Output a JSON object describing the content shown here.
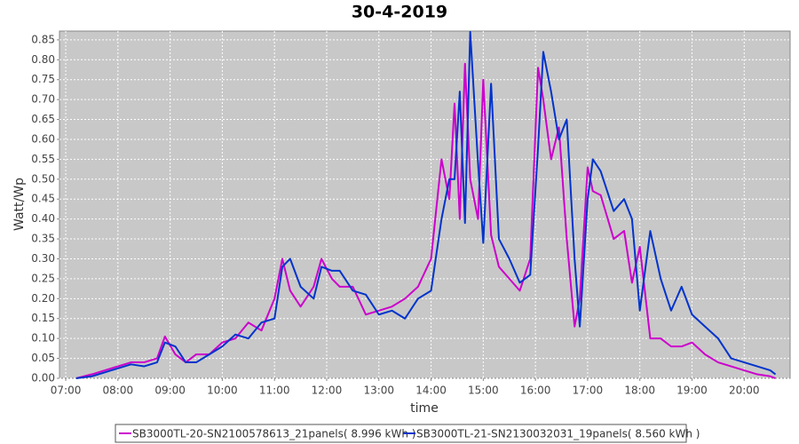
{
  "chart_data": {
    "type": "line",
    "title": "30-4-2019",
    "x_label": "time",
    "y_label": "Watt/Wp",
    "x": [
      7.2,
      7.5,
      7.75,
      8,
      8.25,
      8.5,
      8.75,
      8.9,
      9.1,
      9.3,
      9.5,
      9.75,
      10,
      10.25,
      10.5,
      10.75,
      11,
      11.15,
      11.3,
      11.5,
      11.75,
      11.9,
      12.1,
      12.25,
      12.5,
      12.75,
      13,
      13.25,
      13.5,
      13.75,
      14,
      14.2,
      14.35,
      14.45,
      14.55,
      14.65,
      14.75,
      14.9,
      15,
      15.15,
      15.3,
      15.5,
      15.7,
      15.9,
      16.05,
      16.15,
      16.3,
      16.45,
      16.6,
      16.75,
      16.85,
      17,
      17.1,
      17.25,
      17.5,
      17.7,
      17.85,
      18,
      18.2,
      18.4,
      18.6,
      18.8,
      19,
      19.25,
      19.5,
      19.75,
      20,
      20.25,
      20.5,
      20.6
    ],
    "series": [
      {
        "name": "SB3000TL-20-SN2100578613_21panels( 8.996 kWh )",
        "color": "#cc00cc",
        "values": [
          0.0,
          0.01,
          0.02,
          0.03,
          0.04,
          0.04,
          0.05,
          0.105,
          0.06,
          0.04,
          0.06,
          0.06,
          0.09,
          0.1,
          0.14,
          0.12,
          0.2,
          0.3,
          0.22,
          0.18,
          0.23,
          0.3,
          0.25,
          0.23,
          0.23,
          0.16,
          0.17,
          0.18,
          0.2,
          0.23,
          0.3,
          0.55,
          0.45,
          0.69,
          0.4,
          0.79,
          0.5,
          0.4,
          0.75,
          0.36,
          0.28,
          0.25,
          0.22,
          0.3,
          0.78,
          0.7,
          0.55,
          0.63,
          0.35,
          0.13,
          0.2,
          0.53,
          0.47,
          0.46,
          0.35,
          0.37,
          0.24,
          0.33,
          0.1,
          0.1,
          0.08,
          0.08,
          0.09,
          0.06,
          0.04,
          0.03,
          0.02,
          0.01,
          0.005,
          0.0
        ]
      },
      {
        "name": "SB3000TL-21-SN2130032031_19panels( 8.560 kWh )",
        "color": "#0033cc",
        "values": [
          0.0,
          0.005,
          0.015,
          0.025,
          0.035,
          0.03,
          0.04,
          0.09,
          0.08,
          0.04,
          0.04,
          0.06,
          0.08,
          0.11,
          0.1,
          0.14,
          0.15,
          0.28,
          0.3,
          0.23,
          0.2,
          0.28,
          0.27,
          0.27,
          0.22,
          0.21,
          0.16,
          0.17,
          0.15,
          0.2,
          0.22,
          0.4,
          0.5,
          0.5,
          0.72,
          0.39,
          0.87,
          0.54,
          0.34,
          0.74,
          0.35,
          0.3,
          0.24,
          0.26,
          0.58,
          0.82,
          0.72,
          0.6,
          0.65,
          0.3,
          0.13,
          0.45,
          0.55,
          0.52,
          0.42,
          0.45,
          0.4,
          0.17,
          0.37,
          0.25,
          0.17,
          0.23,
          0.16,
          0.13,
          0.1,
          0.05,
          0.04,
          0.03,
          0.02,
          0.01
        ]
      }
    ],
    "xlim": [
      6.88,
      20.88
    ],
    "xticks": [
      {
        "value": 7,
        "label": "07:00"
      },
      {
        "value": 8,
        "label": "08:00"
      },
      {
        "value": 9,
        "label": "09:00"
      },
      {
        "value": 10,
        "label": "10:00"
      },
      {
        "value": 11,
        "label": "11:00"
      },
      {
        "value": 12,
        "label": "12:00"
      },
      {
        "value": 13,
        "label": "13:00"
      },
      {
        "value": 14,
        "label": "14:00"
      },
      {
        "value": 15,
        "label": "15:00"
      },
      {
        "value": 16,
        "label": "16:00"
      },
      {
        "value": 17,
        "label": "17:00"
      },
      {
        "value": 18,
        "label": "18:00"
      },
      {
        "value": 19,
        "label": "19:00"
      },
      {
        "value": 20,
        "label": "20:00"
      }
    ],
    "ylim": [
      0,
      0.872
    ],
    "yticks": [
      {
        "value": 0,
        "label": "0.00"
      },
      {
        "value": 0.05,
        "label": "0.05"
      },
      {
        "value": 0.1,
        "label": "0.10"
      },
      {
        "value": 0.15,
        "label": "0.15"
      },
      {
        "value": 0.2,
        "label": "0.20"
      },
      {
        "value": 0.25,
        "label": "0.25"
      },
      {
        "value": 0.3,
        "label": "0.30"
      },
      {
        "value": 0.35,
        "label": "0.35"
      },
      {
        "value": 0.4,
        "label": "0.40"
      },
      {
        "value": 0.45,
        "label": "0.45"
      },
      {
        "value": 0.5,
        "label": "0.50"
      },
      {
        "value": 0.55,
        "label": "0.55"
      },
      {
        "value": 0.6,
        "label": "0.60"
      },
      {
        "value": 0.65,
        "label": "0.65"
      },
      {
        "value": 0.7,
        "label": "0.70"
      },
      {
        "value": 0.75,
        "label": "0.75"
      },
      {
        "value": 0.8,
        "label": "0.80"
      },
      {
        "value": 0.85,
        "label": "0.85"
      }
    ],
    "grid": true,
    "legend": "bottom"
  }
}
